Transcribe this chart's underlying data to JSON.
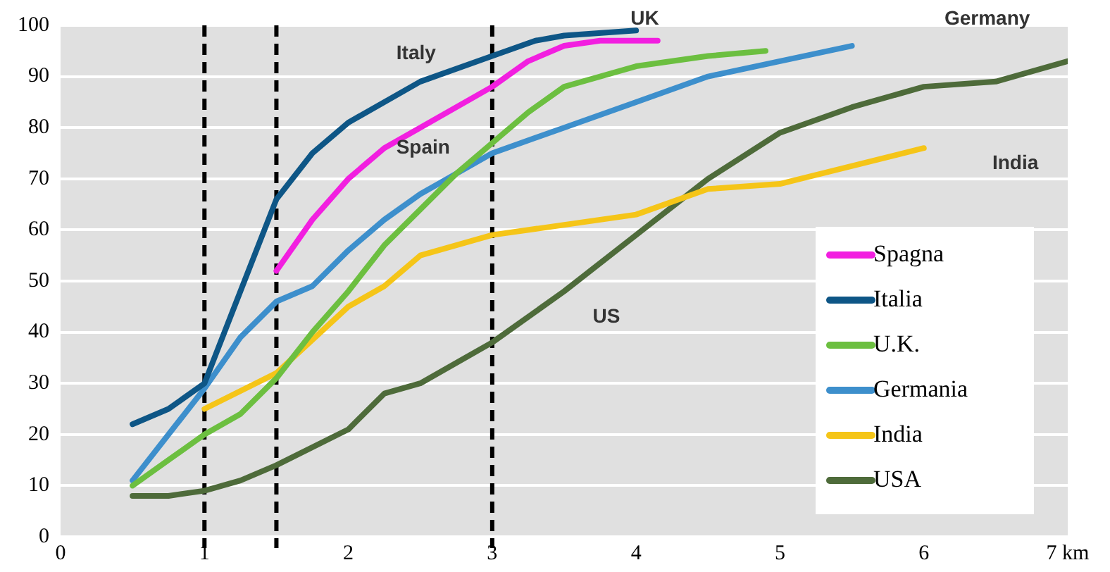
{
  "chart_data": {
    "type": "line",
    "xlim": [
      0,
      7
    ],
    "xticks": [
      0,
      1,
      2,
      3,
      4,
      5,
      6,
      {
        "value": 7,
        "label": "7 km"
      }
    ],
    "ylim": [
      0,
      100
    ],
    "yticks": [
      0,
      10,
      20,
      30,
      40,
      50,
      60,
      70,
      80,
      90,
      100
    ],
    "grid": "y",
    "legend": "bottom right",
    "marker": "none",
    "line_style": "solid",
    "series": [
      {
        "name": "Spagna",
        "color": "#f21fe0",
        "x": [
          1.5,
          1.75,
          2,
          2.25,
          2.5,
          3,
          3.25,
          3.5,
          3.75,
          4.15
        ],
        "values": [
          52,
          62,
          70,
          76,
          80,
          88,
          93,
          96,
          97,
          97
        ]
      },
      {
        "name": "Italia",
        "color": "#0e5686",
        "x": [
          0.5,
          0.75,
          1,
          1.25,
          1.5,
          1.75,
          2,
          2.5,
          3,
          3.3,
          3.5,
          4
        ],
        "values": [
          22,
          25,
          30,
          48,
          66,
          75,
          81,
          89,
          94,
          97,
          98,
          99
        ]
      },
      {
        "name": "U.K.",
        "color": "#6cbf40",
        "x": [
          0.5,
          0.75,
          1,
          1.25,
          1.5,
          1.75,
          2,
          2.25,
          2.5,
          2.75,
          3,
          3.25,
          3.5,
          4,
          4.5,
          4.9
        ],
        "values": [
          10,
          15,
          20,
          24,
          31,
          40,
          48,
          57,
          64,
          71,
          77,
          83,
          88,
          92,
          94,
          95
        ]
      },
      {
        "name": "Germania",
        "color": "#3d8fcc",
        "x": [
          0.5,
          0.75,
          1,
          1.25,
          1.5,
          1.75,
          2,
          2.25,
          2.5,
          2.75,
          3,
          3.5,
          4,
          4.5,
          5,
          5.5
        ],
        "values": [
          11,
          20,
          29,
          39,
          46,
          49,
          56,
          62,
          67,
          71,
          75,
          80,
          85,
          90,
          93,
          96
        ]
      },
      {
        "name": "India",
        "color": "#f5c518",
        "x": [
          1,
          1.5,
          2,
          2.25,
          2.5,
          3,
          4,
          4.5,
          5,
          6
        ],
        "values": [
          25,
          32,
          45,
          49,
          55,
          59,
          63,
          68,
          69,
          76
        ]
      },
      {
        "name": "USA",
        "color": "#4e6b3a",
        "x": [
          0.5,
          0.75,
          1,
          1.25,
          1.5,
          2,
          2.25,
          2.5,
          3,
          3.5,
          4,
          4.5,
          5,
          5.5,
          6,
          6.5,
          7
        ],
        "values": [
          8,
          8,
          9,
          11,
          14,
          21,
          28,
          30,
          38,
          48,
          59,
          70,
          79,
          84,
          88,
          89,
          93
        ]
      }
    ],
    "ref_lines": [
      {
        "axis": "x",
        "value": 1,
        "color": "#000000",
        "line_style": "dashed"
      },
      {
        "axis": "x",
        "value": 1.5,
        "color": "#000000",
        "line_style": "dashed"
      },
      {
        "axis": "x",
        "value": 3,
        "color": "#000000",
        "line_style": "dashed"
      }
    ],
    "annotations": [
      "Italy",
      "Spain",
      "UK",
      "Germany",
      "India",
      "US"
    ]
  }
}
